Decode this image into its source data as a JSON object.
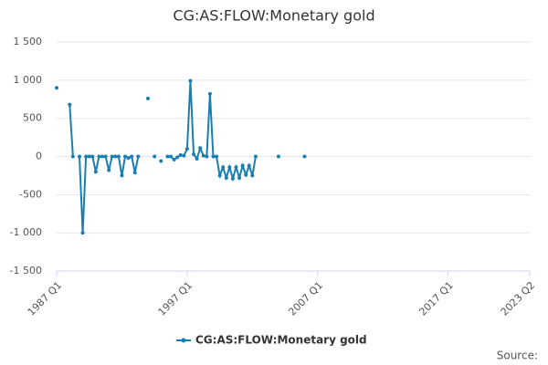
{
  "chart_data": {
    "type": "line",
    "title": "CG:AS:FLOW:Monetary gold",
    "source": "Source:",
    "categories": [
      "1987 Q1",
      null,
      null,
      null,
      null,
      null,
      null,
      null,
      null,
      null,
      null,
      null,
      null,
      null,
      null,
      null,
      null,
      null,
      null,
      null,
      null,
      null,
      null,
      null,
      null,
      null,
      null,
      null,
      null,
      null,
      null,
      null,
      null,
      null,
      null,
      null,
      null,
      null,
      null,
      null,
      "1997 Q1",
      null,
      null,
      null,
      null,
      null,
      null,
      null,
      null,
      null,
      null,
      null,
      null,
      null,
      null,
      null,
      null,
      null,
      null,
      null,
      null,
      null,
      null,
      null,
      null,
      null,
      null,
      null,
      null,
      null,
      null,
      null,
      null,
      null,
      null,
      null,
      null,
      null,
      null,
      null,
      "2007 Q1",
      null,
      null,
      null,
      null,
      null,
      null,
      null,
      null,
      null,
      null,
      null,
      null,
      null,
      null,
      null,
      null,
      null,
      null,
      null,
      null,
      null,
      null,
      null,
      null,
      null,
      null,
      null,
      null,
      null,
      null,
      null,
      null,
      null,
      null,
      null,
      null,
      null,
      null,
      null,
      "2017 Q1",
      null,
      null,
      null,
      null,
      null,
      null,
      null,
      null,
      null,
      null,
      null,
      null,
      null,
      null,
      null,
      null,
      null,
      null,
      null,
      null,
      null,
      null,
      null,
      null,
      "2023 Q2"
    ],
    "series": [
      {
        "name": "CG:AS:FLOW:Monetary gold",
        "color": "#1a7eb3",
        "values": [
          900,
          null,
          null,
          null,
          680,
          0,
          null,
          0,
          -1000,
          0,
          0,
          0,
          -200,
          0,
          0,
          0,
          -180,
          0,
          0,
          0,
          -250,
          0,
          -20,
          0,
          -210,
          0,
          null,
          null,
          760,
          null,
          0,
          null,
          -60,
          null,
          0,
          0,
          -40,
          -10,
          20,
          10,
          100,
          990,
          30,
          -30,
          110,
          10,
          0,
          820,
          0,
          0,
          -250,
          -140,
          -280,
          -140,
          -290,
          -140,
          -280,
          -120,
          -240,
          -120,
          -250,
          0,
          null,
          null,
          null,
          null,
          null,
          null,
          0,
          null,
          null,
          null,
          null,
          null,
          null,
          null,
          0,
          null,
          null,
          null,
          null,
          null,
          null,
          null,
          null,
          null,
          null,
          null,
          null,
          null,
          null,
          null,
          null,
          null,
          null,
          null,
          null,
          null,
          null,
          null,
          null,
          null,
          null,
          null,
          null,
          null,
          null,
          null,
          null,
          null,
          null,
          null,
          null,
          null,
          null,
          null,
          null,
          null,
          null,
          null,
          null,
          null,
          null,
          null,
          null,
          null,
          null,
          null,
          null,
          null,
          null,
          null,
          null,
          null,
          null,
          null,
          null,
          null,
          null,
          null,
          null,
          null,
          null,
          null,
          null,
          null
        ]
      }
    ],
    "ylim": [
      -1500,
      1500
    ],
    "yticks": [
      -1500,
      -1000,
      -500,
      0,
      500,
      1000,
      1500
    ],
    "ytick_labels": [
      {
        "value": -1500,
        "label": "-1 500"
      },
      {
        "value": -1000,
        "label": "-1 000"
      },
      -500,
      0,
      500,
      {
        "value": 1000,
        "label": "1 000"
      },
      {
        "value": 1500,
        "label": "1 500"
      }
    ],
    "grid": true,
    "legend": "bottom"
  }
}
